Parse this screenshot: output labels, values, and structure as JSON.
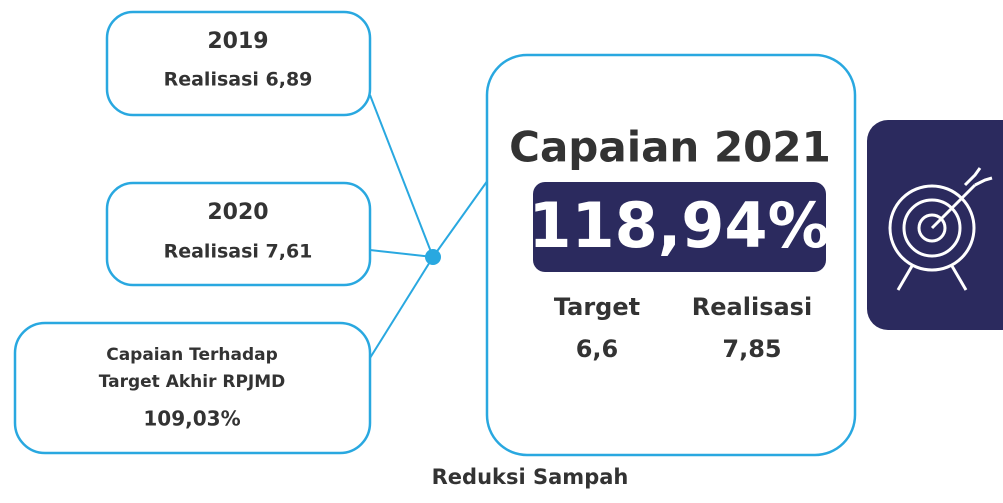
{
  "history": [
    {
      "year": "2019",
      "text": "Realisasi 6,89"
    },
    {
      "year": "2020",
      "text": "Realisasi 7,61"
    }
  ],
  "rpjmd": {
    "line1": "Capaian Terhadap",
    "line2": "Target Akhir RPJMD",
    "value": "109,03%"
  },
  "main": {
    "title": "Capaian 2021",
    "value": "118,94%",
    "target_label": "Target",
    "target_value": "6,6",
    "realisasi_label": "Realisasi",
    "realisasi_value": "7,85"
  },
  "footer": "Reduksi Sampah"
}
